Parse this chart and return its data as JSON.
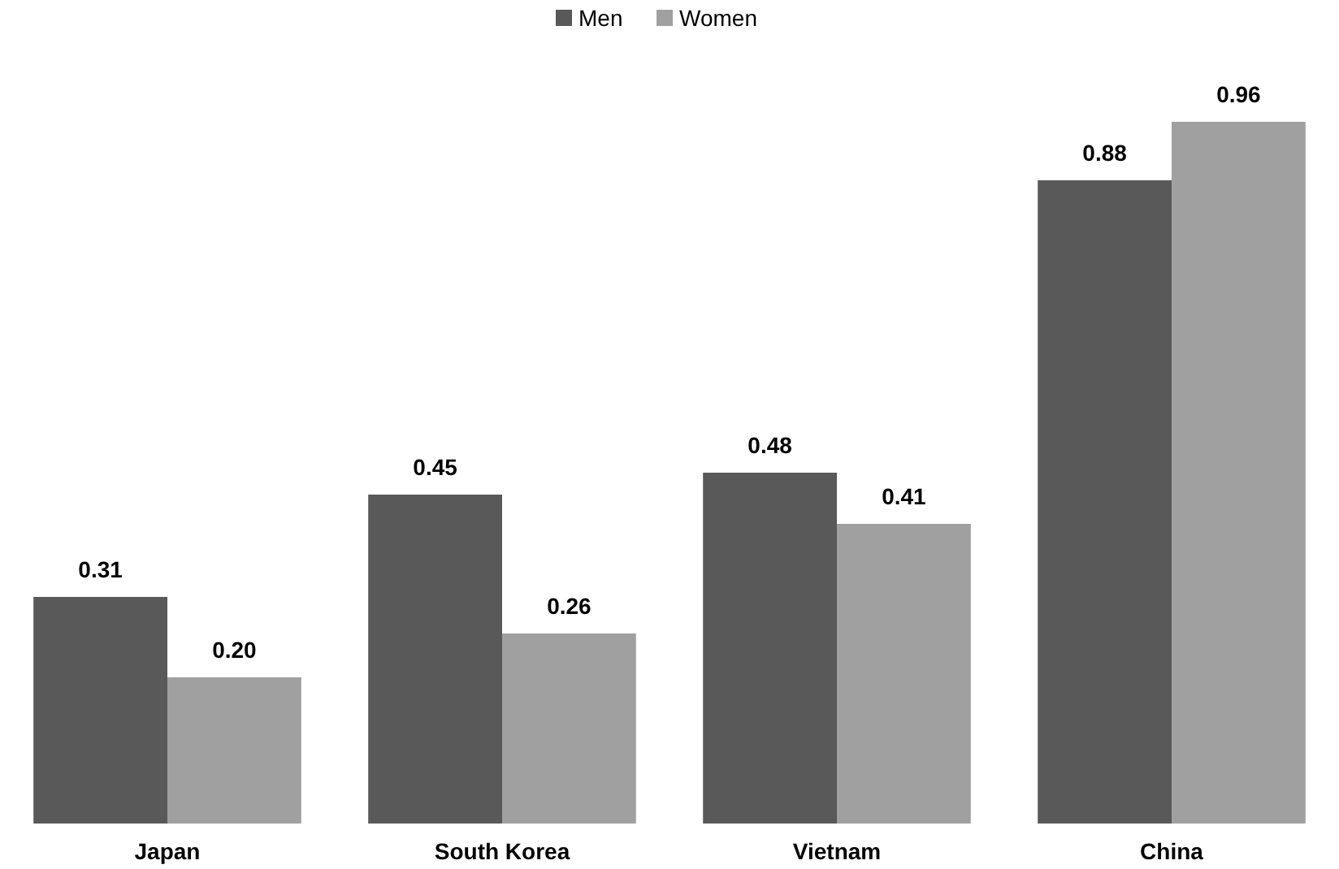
{
  "chart_data": {
    "type": "bar",
    "categories": [
      "Japan",
      "South Korea",
      "Vietnam",
      "China"
    ],
    "series": [
      {
        "name": "Men",
        "color": "#595959",
        "values": [
          0.31,
          0.45,
          0.48,
          0.88
        ],
        "value_labels": [
          "0.31",
          "0.45",
          "0.48",
          "0.88"
        ]
      },
      {
        "name": "Women",
        "color": "#a0a0a0",
        "values": [
          0.2,
          0.26,
          0.41,
          0.96
        ],
        "value_labels": [
          "0.20",
          "0.26",
          "0.41",
          "0.96"
        ]
      }
    ],
    "legend": "top",
    "grid": false
  }
}
